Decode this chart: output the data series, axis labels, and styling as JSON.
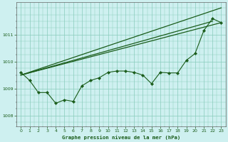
{
  "title": "Graphe pression niveau de la mer (hPa)",
  "bg_color": "#cef0f0",
  "line_color": "#1a5c1a",
  "grid_color": "#88ccbb",
  "xlim": [
    -0.5,
    23.5
  ],
  "ylim": [
    1007.6,
    1012.2
  ],
  "yticks": [
    1008,
    1009,
    1010,
    1011
  ],
  "xticks": [
    0,
    1,
    2,
    3,
    4,
    5,
    6,
    7,
    8,
    9,
    10,
    11,
    12,
    13,
    14,
    15,
    16,
    17,
    18,
    19,
    20,
    21,
    22,
    23
  ],
  "series1": [
    1009.6,
    1009.3,
    1008.85,
    1008.85,
    1008.45,
    1008.58,
    1008.52,
    1009.1,
    1009.3,
    1009.4,
    1009.6,
    1009.65,
    1009.65,
    1009.6,
    1009.5,
    1009.18,
    1009.6,
    1009.58,
    1009.58,
    1010.05,
    1010.3,
    1011.15,
    1011.6,
    1011.45
  ],
  "line2_x": [
    0,
    23
  ],
  "line2_y": [
    1009.5,
    1012.0
  ],
  "line3_x": [
    0,
    22
  ],
  "line3_y": [
    1009.5,
    1011.5
  ],
  "line4_x": [
    0,
    23
  ],
  "line4_y": [
    1009.5,
    1011.45
  ]
}
